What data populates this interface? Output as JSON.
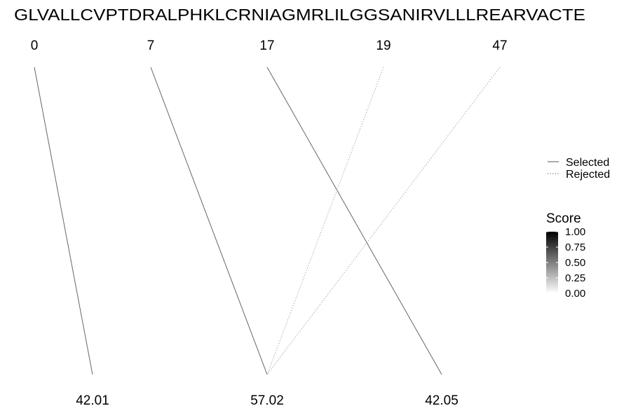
{
  "chart_data": {
    "type": "line",
    "sequence": "GLVALLCVPTDRALPHKLCRNIAGMRLILGGSANIRVLLLREARVACTE",
    "top_labels": [
      "0",
      "7",
      "17",
      "19",
      "47"
    ],
    "bottom_labels": [
      "42.01",
      "57.02",
      "42.05"
    ],
    "connections": [
      {
        "from": "0",
        "to": "42.01",
        "status": "Selected",
        "score": 0.6
      },
      {
        "from": "7",
        "to": "57.02",
        "status": "Selected",
        "score": 0.6
      },
      {
        "from": "17",
        "to": "42.05",
        "status": "Selected",
        "score": 0.6
      },
      {
        "from": "19",
        "to": "57.02",
        "status": "Rejected",
        "score": 0.4
      },
      {
        "from": "47",
        "to": "57.02",
        "status": "Rejected",
        "score": 0.4
      }
    ],
    "legend_linetype": [
      "Selected",
      "Rejected"
    ],
    "legend_score": {
      "title": "Score",
      "breaks": [
        "1.00",
        "0.75",
        "0.50",
        "0.25",
        "0.00"
      ],
      "low_color": "#ffffff",
      "high_color": "#000000"
    }
  }
}
